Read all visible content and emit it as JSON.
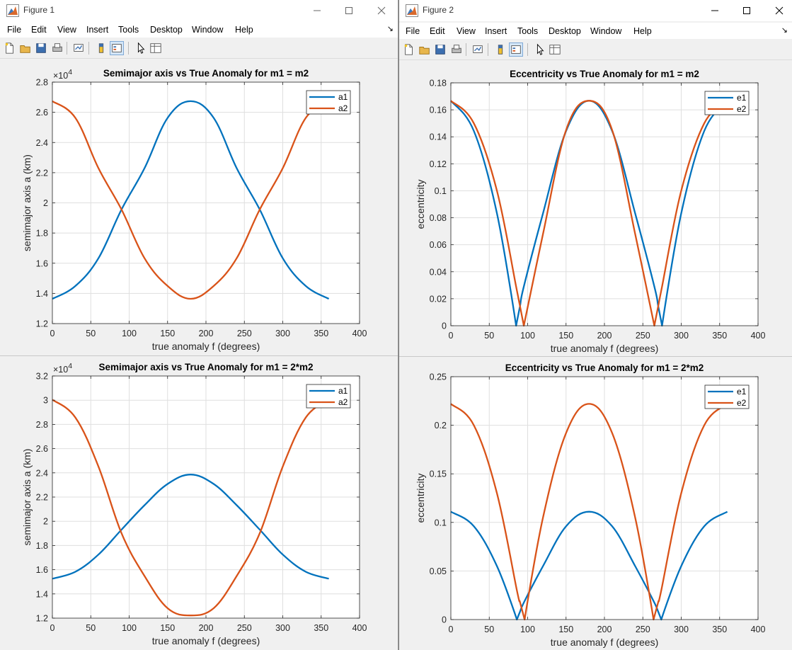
{
  "windows": [
    {
      "title": "Figure 1",
      "menu": [
        "File",
        "Edit",
        "View",
        "Insert",
        "Tools",
        "Desktop",
        "Window",
        "Help"
      ],
      "plots": [
        {
          "title": "Semimajor axis vs True Anomaly for m1 = m2",
          "xlabel": "true anomaly f (degrees)",
          "ylabel": "semimajor axis a (km)",
          "exponent_label": "×10",
          "exponent_power": "4",
          "xlim": [
            0,
            400
          ],
          "ylim": [
            1.2,
            2.8
          ],
          "xticks": [
            "0",
            "50",
            "100",
            "150",
            "200",
            "250",
            "300",
            "350",
            "400"
          ],
          "yticks": [
            "1.2",
            "1.4",
            "1.6",
            "1.8",
            "2",
            "2.2",
            "2.4",
            "2.6",
            "2.8"
          ],
          "legend": [
            "a1",
            "a2"
          ]
        },
        {
          "title": "Semimajor axis vs True Anomaly for m1 = 2*m2",
          "xlabel": "true anomaly f (degrees)",
          "ylabel": "semimajor axis a (km)",
          "exponent_label": "×10",
          "exponent_power": "4",
          "xlim": [
            0,
            400
          ],
          "ylim": [
            1.2,
            3.2
          ],
          "xticks": [
            "0",
            "50",
            "100",
            "150",
            "200",
            "250",
            "300",
            "350",
            "400"
          ],
          "yticks": [
            "1.2",
            "1.4",
            "1.6",
            "1.8",
            "2",
            "2.2",
            "2.4",
            "2.6",
            "2.8",
            "3",
            "3.2"
          ],
          "legend": [
            "a1",
            "a2"
          ]
        }
      ]
    },
    {
      "title": "Figure 2",
      "menu": [
        "File",
        "Edit",
        "View",
        "Insert",
        "Tools",
        "Desktop",
        "Window",
        "Help"
      ],
      "plots": [
        {
          "title": "Eccentricity vs True Anomaly for m1 = m2",
          "xlabel": "true anomaly f (degrees)",
          "ylabel": "eccentricity",
          "exponent_label": "",
          "exponent_power": "",
          "xlim": [
            0,
            400
          ],
          "ylim": [
            0,
            0.18
          ],
          "xticks": [
            "0",
            "50",
            "100",
            "150",
            "200",
            "250",
            "300",
            "350",
            "400"
          ],
          "yticks": [
            "0",
            "0.02",
            "0.04",
            "0.06",
            "0.08",
            "0.1",
            "0.12",
            "0.14",
            "0.16",
            "0.18"
          ],
          "legend": [
            "e1",
            "e2"
          ]
        },
        {
          "title": "Eccentricity vs True Anomaly for m1 = 2*m2",
          "xlabel": "true anomaly f (degrees)",
          "ylabel": "eccentricity",
          "exponent_label": "",
          "exponent_power": "",
          "xlim": [
            0,
            400
          ],
          "ylim": [
            0,
            0.25
          ],
          "xticks": [
            "0",
            "50",
            "100",
            "150",
            "200",
            "250",
            "300",
            "350",
            "400"
          ],
          "yticks": [
            "0",
            "0.05",
            "0.1",
            "0.15",
            "0.2",
            "0.25"
          ],
          "legend": [
            "e1",
            "e2"
          ]
        }
      ]
    }
  ],
  "icons": [
    "new-figure-icon",
    "open-icon",
    "save-icon",
    "print-icon",
    "link-plot-icon",
    "colorbar-icon",
    "legend-icon",
    "pointer-icon",
    "property-inspector-icon"
  ],
  "colors": {
    "series1": "#0072BD",
    "series2": "#D95319",
    "grid": "#dfdfdf",
    "axes_bg": "#ffffff",
    "figure_bg": "#f0f0f0"
  },
  "chart_data": [
    {
      "type": "line",
      "title": "Semimajor axis vs True Anomaly for m1 = m2",
      "xlabel": "true anomaly f (degrees)",
      "ylabel": "semimajor axis a (km)",
      "y_scale_factor": "1e4",
      "xlim": [
        0,
        400
      ],
      "ylim": [
        1.2,
        2.8
      ],
      "grid": true,
      "legend_position": "top-right",
      "x": [
        0,
        30,
        60,
        90,
        120,
        150,
        180,
        210,
        240,
        270,
        300,
        330,
        360
      ],
      "series": [
        {
          "name": "a1",
          "values": [
            1.364,
            1.449,
            1.633,
            1.956,
            2.23,
            2.563,
            2.674,
            2.563,
            2.23,
            1.956,
            1.633,
            1.449,
            1.364
          ]
        },
        {
          "name": "a2",
          "values": [
            2.674,
            2.563,
            2.23,
            1.956,
            1.633,
            1.449,
            1.364,
            1.449,
            1.633,
            1.956,
            2.23,
            2.563,
            2.674
          ]
        }
      ]
    },
    {
      "type": "line",
      "title": "Semimajor axis vs True Anomaly for m1 = 2*m2",
      "xlabel": "true anomaly f (degrees)",
      "ylabel": "semimajor axis a (km)",
      "y_scale_factor": "1e4",
      "xlim": [
        0,
        400
      ],
      "ylim": [
        1.2,
        3.2
      ],
      "grid": true,
      "legend_position": "top-right",
      "x": [
        0,
        30,
        60,
        90,
        120,
        150,
        180,
        210,
        240,
        270,
        300,
        330,
        360
      ],
      "series": [
        {
          "name": "a1",
          "values": [
            1.526,
            1.583,
            1.725,
            1.931,
            2.133,
            2.308,
            2.386,
            2.308,
            2.133,
            1.931,
            1.725,
            1.583,
            1.526
          ]
        },
        {
          "name": "a2",
          "values": [
            3.004,
            2.857,
            2.452,
            1.901,
            1.548,
            1.282,
            1.222,
            1.282,
            1.548,
            1.901,
            2.452,
            2.857,
            3.004
          ]
        }
      ]
    },
    {
      "type": "line",
      "title": "Eccentricity vs True Anomaly for m1 = m2",
      "xlabel": "true anomaly f (degrees)",
      "ylabel": "eccentricity",
      "xlim": [
        0,
        400
      ],
      "ylim": [
        0,
        0.18
      ],
      "grid": true,
      "legend_position": "top-right",
      "x": [
        0,
        30,
        60,
        85,
        90,
        95,
        120,
        150,
        180,
        210,
        240,
        265,
        270,
        275,
        300,
        330,
        360
      ],
      "series": [
        {
          "name": "e1",
          "values": [
            0.1667,
            0.1443,
            0.0833,
            0.0,
            0.0145,
            0.029,
            0.0833,
            0.1443,
            0.1667,
            0.1443,
            0.0833,
            0.029,
            0.0145,
            0.0,
            0.0833,
            0.1443,
            0.1667
          ]
        },
        {
          "name": "e2",
          "values": [
            0.1667,
            0.15,
            0.1,
            0.029,
            0.0145,
            0.0,
            0.068,
            0.145,
            0.1667,
            0.145,
            0.068,
            0.0,
            0.0145,
            0.029,
            0.1,
            0.15,
            0.1667
          ]
        }
      ]
    },
    {
      "type": "line",
      "title": "Eccentricity vs True Anomaly for m1 = 2*m2",
      "xlabel": "true anomaly f (degrees)",
      "ylabel": "eccentricity",
      "xlim": [
        0,
        400
      ],
      "ylim": [
        0,
        0.25
      ],
      "grid": true,
      "legend_position": "top-right",
      "x": [
        0,
        30,
        60,
        86,
        90,
        96,
        120,
        150,
        180,
        210,
        240,
        264,
        270,
        274,
        300,
        330,
        360
      ],
      "series": [
        {
          "name": "e1",
          "values": [
            0.111,
            0.096,
            0.055,
            0.0,
            0.008,
            0.019,
            0.055,
            0.096,
            0.111,
            0.096,
            0.055,
            0.019,
            0.008,
            0.0,
            0.055,
            0.096,
            0.111
          ]
        },
        {
          "name": "e2",
          "values": [
            0.222,
            0.2,
            0.13,
            0.03,
            0.018,
            0.0,
            0.105,
            0.192,
            0.222,
            0.192,
            0.105,
            0.0,
            0.018,
            0.03,
            0.13,
            0.2,
            0.222
          ]
        }
      ]
    }
  ]
}
